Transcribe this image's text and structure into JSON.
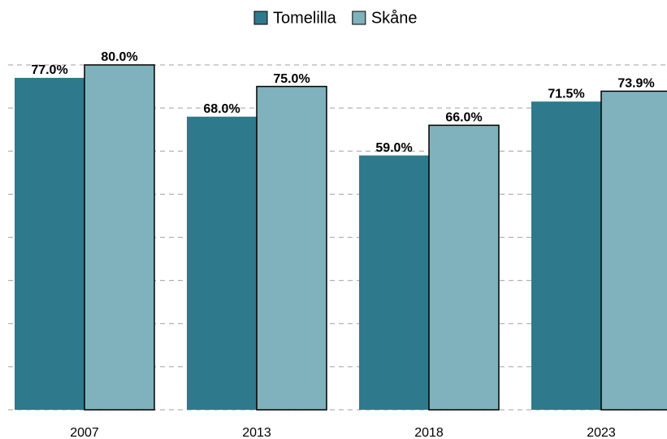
{
  "chart_data": {
    "type": "bar",
    "categories": [
      "2007",
      "2013",
      "2018",
      "2023"
    ],
    "series": [
      {
        "name": "Tomelilla",
        "color": "#2e7a8c",
        "values": [
          77.0,
          68.0,
          59.0,
          71.5
        ],
        "value_labels": [
          "77.0%",
          "68.0%",
          "59.0%",
          "71.5%"
        ]
      },
      {
        "name": "Skåne",
        "color": "#7fb2bc",
        "values": [
          80.0,
          75.0,
          66.0,
          73.9
        ],
        "value_labels": [
          "80.0%",
          "75.0%",
          "66.0%",
          "73.9%"
        ]
      }
    ],
    "ylim": [
      0,
      80
    ],
    "yticks": [
      0,
      10,
      20,
      30,
      40,
      50,
      60,
      70,
      80
    ],
    "grid": true,
    "legend": "top"
  }
}
